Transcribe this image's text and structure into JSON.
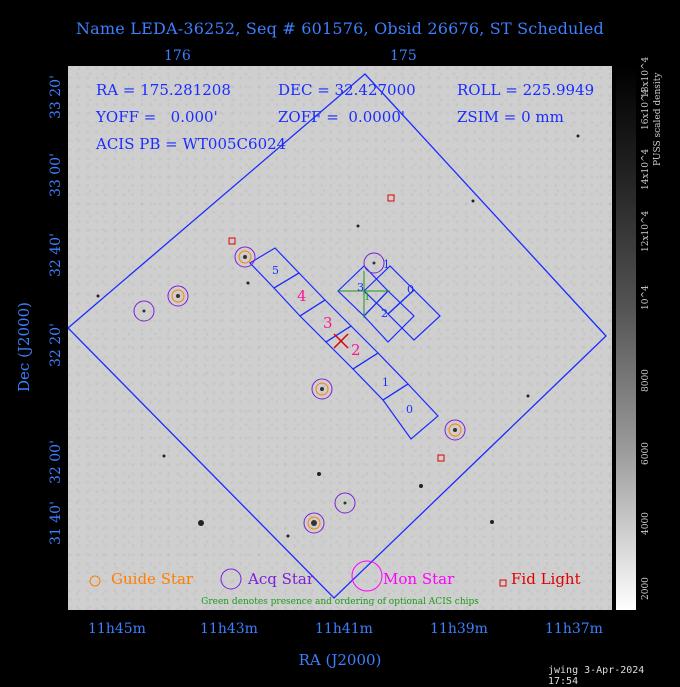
{
  "title": "Name LEDA-36252, Seq # 601576, Obsid 26676, ST Scheduled",
  "top_ticks": [
    "176",
    "175"
  ],
  "x_ticks": [
    "11h45m",
    "11h43m",
    "11h41m",
    "11h39m",
    "11h37m"
  ],
  "y_ticks": [
    "31 40'",
    "32 00'",
    "32 20'",
    "32 40'",
    "33 00'",
    "33 20'"
  ],
  "x_axis_label": "RA (J2000)",
  "y_axis_label": "Dec (J2000)",
  "info": {
    "ra": "RA = 175.281208",
    "dec": "DEC = 32.427000",
    "roll": "ROLL = 225.9949",
    "yoff": "YOFF =   0.000'",
    "zoff": "ZOFF =  0.0000'",
    "zsim": "ZSIM = 0 mm",
    "acis": "ACIS PB = WT005C6024"
  },
  "colorbar": {
    "label": "PUSS scaled density",
    "ticks": [
      "2000",
      "4000",
      "6000",
      "8000",
      "10^4",
      "12x10^4",
      "14x10^4",
      "16x10^4",
      "18x10^4"
    ]
  },
  "chips": {
    "labels": [
      "5",
      "4",
      "3",
      "2",
      "1",
      "0",
      "1",
      "0",
      "3",
      "2",
      "1"
    ]
  },
  "legend": {
    "guide": "Guide Star",
    "acq": "Acq Star",
    "mon": "Mon Star",
    "fid": "Fid Light",
    "note": "Green denotes presence and ordering of optional ACIS chips"
  },
  "colors": {
    "axis": "#3d7fff",
    "overlay": "#1a2cff",
    "guide": "#ff7f00",
    "acq": "#7b20d8",
    "mon": "#ff00ff",
    "fid": "#e00000",
    "chip_label": "#ff1493",
    "optional": "#1a9a1a"
  },
  "footer": "jwing  3-Apr-2024 17:54"
}
